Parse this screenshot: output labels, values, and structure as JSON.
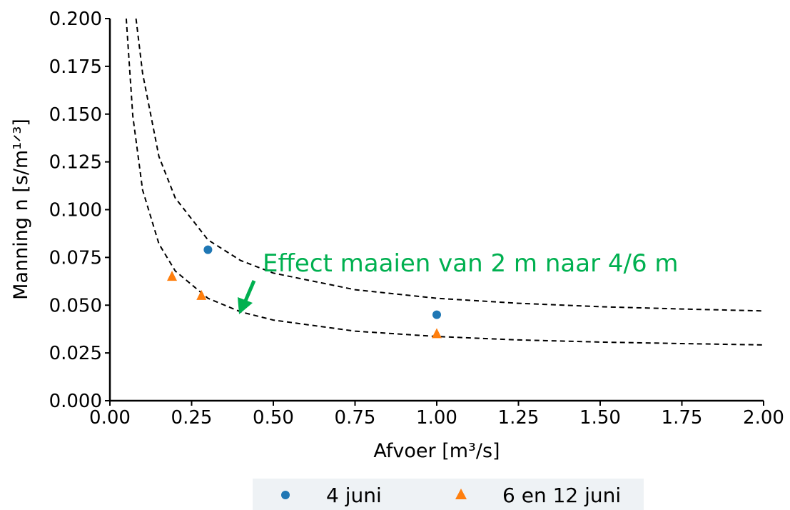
{
  "chart_data": {
    "type": "scatter",
    "xlabel": "Afvoer [m³/s]",
    "ylabel": "Manning n [s/m¹ᐟ³]",
    "xlim": [
      0,
      2.0
    ],
    "ylim": [
      0,
      0.2
    ],
    "xticks": [
      "0.00",
      "0.25",
      "0.50",
      "0.75",
      "1.00",
      "1.25",
      "1.50",
      "1.75",
      "2.00"
    ],
    "yticks": [
      "0.000",
      "0.025",
      "0.050",
      "0.075",
      "0.100",
      "0.125",
      "0.150",
      "0.175",
      "0.200"
    ],
    "grid": false,
    "legend_position": "bottom-center",
    "series": [
      {
        "name": "4 juni",
        "marker": "circle",
        "color": "#1f77b4",
        "points": [
          {
            "x": 0.3,
            "y": 0.079
          },
          {
            "x": 1.0,
            "y": 0.045
          }
        ]
      },
      {
        "name": "6 en 12 juni",
        "marker": "triangle",
        "color": "#ff7f0e",
        "points": [
          {
            "x": 0.19,
            "y": 0.065
          },
          {
            "x": 0.28,
            "y": 0.055
          },
          {
            "x": 1.0,
            "y": 0.035
          }
        ]
      }
    ],
    "fit_curves": [
      {
        "style": "dashed",
        "color": "#000000",
        "points": [
          [
            0.08,
            0.2
          ],
          [
            0.1,
            0.1714
          ],
          [
            0.15,
            0.1278
          ],
          [
            0.2,
            0.1061
          ],
          [
            0.3,
            0.0842
          ],
          [
            0.4,
            0.0734
          ],
          [
            0.5,
            0.0668
          ],
          [
            0.75,
            0.0581
          ],
          [
            1.0,
            0.0536
          ],
          [
            1.25,
            0.051
          ],
          [
            1.5,
            0.0492
          ],
          [
            1.75,
            0.048
          ],
          [
            2.0,
            0.047
          ]
        ]
      },
      {
        "style": "dashed",
        "color": "#000000",
        "points": [
          [
            0.05,
            0.2
          ],
          [
            0.07,
            0.149
          ],
          [
            0.1,
            0.1103
          ],
          [
            0.15,
            0.0821
          ],
          [
            0.2,
            0.0679
          ],
          [
            0.3,
            0.0536
          ],
          [
            0.4,
            0.0465
          ],
          [
            0.5,
            0.0422
          ],
          [
            0.75,
            0.0364
          ],
          [
            1.0,
            0.0336
          ],
          [
            1.25,
            0.0318
          ],
          [
            1.5,
            0.0307
          ],
          [
            1.75,
            0.0299
          ],
          [
            2.0,
            0.0292
          ]
        ]
      }
    ],
    "annotation": {
      "text": "Effect maaien van 2 m naar 4/6 m",
      "color": "#00b050",
      "arrow_to": {
        "x": 0.4,
        "y": 0.047
      }
    }
  }
}
